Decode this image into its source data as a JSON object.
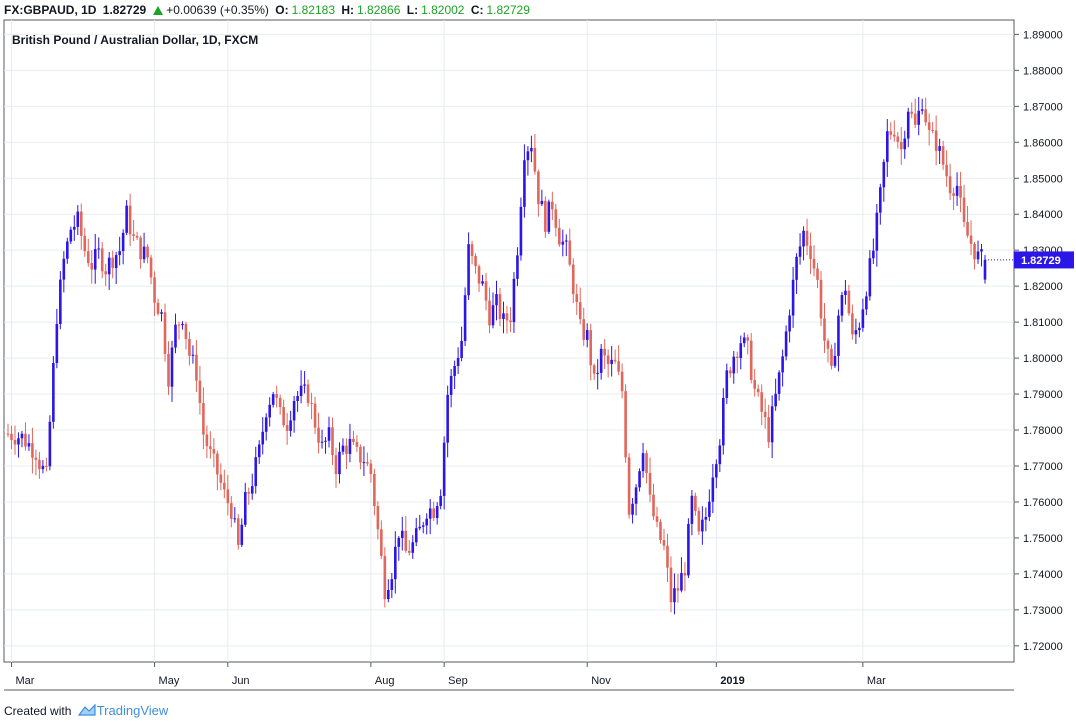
{
  "header": {
    "symbol": "FX:GBPAUD, 1D",
    "last": "1.82729",
    "change": "+0.00639 (+0.35%)",
    "o_label": "O:",
    "o": "1.82183",
    "h_label": "H:",
    "h": "1.82866",
    "l_label": "L:",
    "l": "1.82002",
    "c_label": "C:",
    "c": "1.82729"
  },
  "footer": {
    "created_with": "Created with",
    "brand": "TradingView"
  },
  "colors": {
    "up": "#2b16e6",
    "down": "#e0675c",
    "grid": "#e8ecf1",
    "axis": "#555a66",
    "price_tag": "#2b16e6"
  },
  "chart_data": {
    "type": "candlestick",
    "title": "British Pound / Australian Dollar, 1D, FXCM",
    "y_ticks": [
      "1.72000",
      "1.73000",
      "1.74000",
      "1.75000",
      "1.76000",
      "1.77000",
      "1.78000",
      "1.79000",
      "1.80000",
      "1.81000",
      "1.82000",
      "1.83000",
      "1.84000",
      "1.85000",
      "1.86000",
      "1.87000",
      "1.88000",
      "1.89000"
    ],
    "ylim": [
      1.7155,
      1.894
    ],
    "last_price_label": "1.82729",
    "last_price": 1.82729,
    "x_labels": [
      "Mar",
      "May",
      "Jun",
      "Aug",
      "Sep",
      "Nov",
      "2019",
      "Mar"
    ],
    "x_label_bars": [
      1,
      42,
      63,
      104,
      125,
      166,
      203,
      245
    ],
    "grid": true,
    "close_path": [
      [
        0,
        1.779
      ],
      [
        4,
        1.778
      ],
      [
        8,
        1.774
      ],
      [
        9,
        1.771
      ],
      [
        11,
        1.767
      ],
      [
        12,
        1.782
      ],
      [
        14,
        1.812
      ],
      [
        16,
        1.827
      ],
      [
        18,
        1.836
      ],
      [
        20,
        1.838
      ],
      [
        22,
        1.83
      ],
      [
        24,
        1.826
      ],
      [
        26,
        1.829
      ],
      [
        28,
        1.825
      ],
      [
        30,
        1.828
      ],
      [
        32,
        1.83
      ],
      [
        34,
        1.84
      ],
      [
        36,
        1.833
      ],
      [
        38,
        1.83
      ],
      [
        40,
        1.828
      ],
      [
        42,
        1.817
      ],
      [
        44,
        1.812
      ],
      [
        46,
        1.795
      ],
      [
        48,
        1.808
      ],
      [
        50,
        1.812
      ],
      [
        52,
        1.801
      ],
      [
        54,
        1.796
      ],
      [
        56,
        1.779
      ],
      [
        58,
        1.773
      ],
      [
        60,
        1.768
      ],
      [
        62,
        1.762
      ],
      [
        64,
        1.758
      ],
      [
        66,
        1.747
      ],
      [
        68,
        1.76
      ],
      [
        70,
        1.766
      ],
      [
        72,
        1.774
      ],
      [
        74,
        1.786
      ],
      [
        76,
        1.791
      ],
      [
        78,
        1.784
      ],
      [
        80,
        1.782
      ],
      [
        82,
        1.789
      ],
      [
        84,
        1.79
      ],
      [
        86,
        1.79
      ],
      [
        88,
        1.782
      ],
      [
        90,
        1.775
      ],
      [
        92,
        1.778
      ],
      [
        94,
        1.77
      ],
      [
        96,
        1.775
      ],
      [
        98,
        1.776
      ],
      [
        100,
        1.773
      ],
      [
        102,
        1.772
      ],
      [
        104,
        1.768
      ],
      [
        106,
        1.752
      ],
      [
        108,
        1.736
      ],
      [
        110,
        1.741
      ],
      [
        112,
        1.752
      ],
      [
        114,
        1.746
      ],
      [
        116,
        1.748
      ],
      [
        118,
        1.752
      ],
      [
        120,
        1.758
      ],
      [
        122,
        1.758
      ],
      [
        124,
        1.764
      ],
      [
        126,
        1.79
      ],
      [
        128,
        1.798
      ],
      [
        130,
        1.805
      ],
      [
        132,
        1.83
      ],
      [
        134,
        1.824
      ],
      [
        136,
        1.82
      ],
      [
        138,
        1.812
      ],
      [
        140,
        1.815
      ],
      [
        142,
        1.81
      ],
      [
        144,
        1.812
      ],
      [
        146,
        1.831
      ],
      [
        148,
        1.858
      ],
      [
        150,
        1.86
      ],
      [
        152,
        1.845
      ],
      [
        154,
        1.838
      ],
      [
        156,
        1.843
      ],
      [
        158,
        1.834
      ],
      [
        160,
        1.83
      ],
      [
        162,
        1.82
      ],
      [
        164,
        1.808
      ],
      [
        166,
        1.806
      ],
      [
        168,
        1.793
      ],
      [
        170,
        1.801
      ],
      [
        172,
        1.798
      ],
      [
        174,
        1.798
      ],
      [
        176,
        1.791
      ],
      [
        178,
        1.758
      ],
      [
        180,
        1.765
      ],
      [
        182,
        1.776
      ],
      [
        184,
        1.76
      ],
      [
        186,
        1.752
      ],
      [
        188,
        1.747
      ],
      [
        190,
        1.733
      ],
      [
        192,
        1.736
      ],
      [
        194,
        1.742
      ],
      [
        196,
        1.76
      ],
      [
        198,
        1.75
      ],
      [
        200,
        1.756
      ],
      [
        202,
        1.769
      ],
      [
        204,
        1.778
      ],
      [
        206,
        1.795
      ],
      [
        208,
        1.801
      ],
      [
        210,
        1.805
      ],
      [
        212,
        1.802
      ],
      [
        214,
        1.791
      ],
      [
        216,
        1.785
      ],
      [
        218,
        1.779
      ],
      [
        220,
        1.789
      ],
      [
        222,
        1.8
      ],
      [
        224,
        1.814
      ],
      [
        226,
        1.827
      ],
      [
        228,
        1.835
      ],
      [
        230,
        1.83
      ],
      [
        232,
        1.821
      ],
      [
        234,
        1.805
      ],
      [
        236,
        1.795
      ],
      [
        238,
        1.812
      ],
      [
        240,
        1.82
      ],
      [
        242,
        1.805
      ],
      [
        244,
        1.81
      ],
      [
        246,
        1.82
      ],
      [
        248,
        1.83
      ],
      [
        250,
        1.845
      ],
      [
        252,
        1.862
      ],
      [
        254,
        1.864
      ],
      [
        256,
        1.858
      ],
      [
        258,
        1.87
      ],
      [
        260,
        1.864
      ],
      [
        262,
        1.872
      ],
      [
        264,
        1.862
      ],
      [
        266,
        1.86
      ],
      [
        268,
        1.854
      ],
      [
        270,
        1.848
      ],
      [
        272,
        1.848
      ],
      [
        274,
        1.836
      ],
      [
        276,
        1.832
      ],
      [
        278,
        1.828
      ],
      [
        280,
        1.827
      ]
    ]
  }
}
